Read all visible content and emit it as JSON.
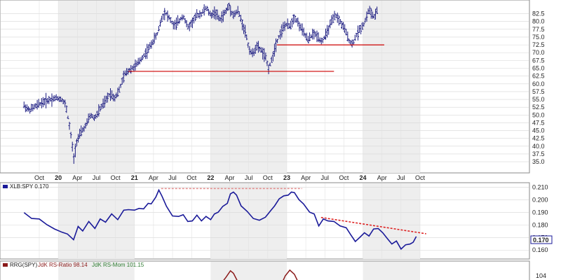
{
  "chart_data": [
    {
      "type": "ohlc",
      "ylim": [
        33,
        86
      ],
      "yticks": [
        "35.0",
        "37.5",
        "40.0",
        "42.5",
        "45.0",
        "47.5",
        "50.0",
        "52.5",
        "55.0",
        "57.5",
        "60.0",
        "62.5",
        "65.0",
        "67.5",
        "70.0",
        "72.5",
        "75.0",
        "77.5",
        "80.0",
        "82.5"
      ],
      "time_ticks": [
        {
          "label": "Oct",
          "bold": false,
          "year": 2019.75
        },
        {
          "label": "20",
          "bold": true,
          "year": 2020.0
        },
        {
          "label": "Apr",
          "bold": false,
          "year": 2020.25
        },
        {
          "label": "Jul",
          "bold": false,
          "year": 2020.5
        },
        {
          "label": "Oct",
          "bold": false,
          "year": 2020.75
        },
        {
          "label": "21",
          "bold": true,
          "year": 2021.0
        },
        {
          "label": "Apr",
          "bold": false,
          "year": 2021.25
        },
        {
          "label": "Jul",
          "bold": false,
          "year": 2021.5
        },
        {
          "label": "Oct",
          "bold": false,
          "year": 2021.75
        },
        {
          "label": "22",
          "bold": true,
          "year": 2022.0
        },
        {
          "label": "Apr",
          "bold": false,
          "year": 2022.25
        },
        {
          "label": "Jul",
          "bold": false,
          "year": 2022.5
        },
        {
          "label": "Oct",
          "bold": false,
          "year": 2022.75
        },
        {
          "label": "23",
          "bold": true,
          "year": 2023.0
        },
        {
          "label": "Apr",
          "bold": false,
          "year": 2023.25
        },
        {
          "label": "Jul",
          "bold": false,
          "year": 2023.5
        },
        {
          "label": "Oct",
          "bold": false,
          "year": 2023.75
        },
        {
          "label": "24",
          "bold": true,
          "year": 2024.0
        },
        {
          "label": "Apr",
          "bold": false,
          "year": 2024.25
        },
        {
          "label": "Jul",
          "bold": false,
          "year": 2024.5
        },
        {
          "label": "Oct",
          "bold": false,
          "year": 2024.75
        }
      ],
      "series": [
        {
          "year": 2019.55,
          "price": 53.0
        },
        {
          "year": 2019.62,
          "price": 51.5
        },
        {
          "year": 2019.68,
          "price": 52.5
        },
        {
          "year": 2019.75,
          "price": 53.5
        },
        {
          "year": 2019.83,
          "price": 54.5
        },
        {
          "year": 2019.9,
          "price": 55.0
        },
        {
          "year": 2019.97,
          "price": 55.5
        },
        {
          "year": 2020.05,
          "price": 55.0
        },
        {
          "year": 2020.1,
          "price": 53.0
        },
        {
          "year": 2020.14,
          "price": 47.5
        },
        {
          "year": 2020.18,
          "price": 41.0
        },
        {
          "year": 2020.2,
          "price": 35.5
        },
        {
          "year": 2020.24,
          "price": 41.5
        },
        {
          "year": 2020.3,
          "price": 44.5
        },
        {
          "year": 2020.36,
          "price": 46.5
        },
        {
          "year": 2020.42,
          "price": 50.0
        },
        {
          "year": 2020.48,
          "price": 49.0
        },
        {
          "year": 2020.55,
          "price": 52.0
        },
        {
          "year": 2020.62,
          "price": 54.5
        },
        {
          "year": 2020.68,
          "price": 57.0
        },
        {
          "year": 2020.74,
          "price": 55.5
        },
        {
          "year": 2020.8,
          "price": 58.0
        },
        {
          "year": 2020.87,
          "price": 63.0
        },
        {
          "year": 2020.93,
          "price": 64.5
        },
        {
          "year": 2021.0,
          "price": 65.5
        },
        {
          "year": 2021.06,
          "price": 67.0
        },
        {
          "year": 2021.12,
          "price": 69.0
        },
        {
          "year": 2021.18,
          "price": 71.0
        },
        {
          "year": 2021.24,
          "price": 73.5
        },
        {
          "year": 2021.3,
          "price": 76.0
        },
        {
          "year": 2021.35,
          "price": 80.5
        },
        {
          "year": 2021.4,
          "price": 83.0
        },
        {
          "year": 2021.46,
          "price": 81.0
        },
        {
          "year": 2021.52,
          "price": 78.5
        },
        {
          "year": 2021.58,
          "price": 80.0
        },
        {
          "year": 2021.64,
          "price": 82.0
        },
        {
          "year": 2021.7,
          "price": 78.0
        },
        {
          "year": 2021.75,
          "price": 79.5
        },
        {
          "year": 2021.82,
          "price": 82.0
        },
        {
          "year": 2021.88,
          "price": 82.5
        },
        {
          "year": 2021.94,
          "price": 84.5
        },
        {
          "year": 2022.0,
          "price": 82.0
        },
        {
          "year": 2022.06,
          "price": 83.0
        },
        {
          "year": 2022.12,
          "price": 80.5
        },
        {
          "year": 2022.18,
          "price": 82.5
        },
        {
          "year": 2022.24,
          "price": 85.0
        },
        {
          "year": 2022.3,
          "price": 82.0
        },
        {
          "year": 2022.36,
          "price": 83.5
        },
        {
          "year": 2022.42,
          "price": 79.0
        },
        {
          "year": 2022.46,
          "price": 76.5
        },
        {
          "year": 2022.5,
          "price": 71.5
        },
        {
          "year": 2022.55,
          "price": 69.5
        },
        {
          "year": 2022.6,
          "price": 72.0
        },
        {
          "year": 2022.66,
          "price": 71.0
        },
        {
          "year": 2022.72,
          "price": 68.5
        },
        {
          "year": 2022.76,
          "price": 65.0
        },
        {
          "year": 2022.8,
          "price": 67.5
        },
        {
          "year": 2022.86,
          "price": 73.0
        },
        {
          "year": 2022.92,
          "price": 76.5
        },
        {
          "year": 2022.98,
          "price": 79.0
        },
        {
          "year": 2023.04,
          "price": 78.5
        },
        {
          "year": 2023.1,
          "price": 81.5
        },
        {
          "year": 2023.16,
          "price": 79.0
        },
        {
          "year": 2023.22,
          "price": 76.5
        },
        {
          "year": 2023.28,
          "price": 74.0
        },
        {
          "year": 2023.34,
          "price": 76.0
        },
        {
          "year": 2023.4,
          "price": 75.5
        },
        {
          "year": 2023.46,
          "price": 73.5
        },
        {
          "year": 2023.52,
          "price": 76.0
        },
        {
          "year": 2023.58,
          "price": 79.5
        },
        {
          "year": 2023.64,
          "price": 82.0
        },
        {
          "year": 2023.7,
          "price": 80.0
        },
        {
          "year": 2023.76,
          "price": 77.5
        },
        {
          "year": 2023.82,
          "price": 74.0
        },
        {
          "year": 2023.86,
          "price": 72.5
        },
        {
          "year": 2023.9,
          "price": 75.0
        },
        {
          "year": 2023.96,
          "price": 77.5
        },
        {
          "year": 2024.02,
          "price": 79.5
        },
        {
          "year": 2024.08,
          "price": 84.0
        },
        {
          "year": 2024.12,
          "price": 82.0
        },
        {
          "year": 2024.16,
          "price": 81.5
        },
        {
          "year": 2024.2,
          "price": 84.5
        }
      ],
      "support_lines": [
        {
          "from": 2020.92,
          "to": 2023.62,
          "price": 64.0,
          "color": "#cc0000"
        },
        {
          "from": 2022.87,
          "to": 2024.28,
          "price": 72.5,
          "color": "#cc0000"
        }
      ]
    },
    {
      "type": "line",
      "legend": "XLB:SPY 0.170",
      "series_name": "XLB:SPY",
      "last_value_label": "0.170",
      "ylim": [
        0.154,
        0.212
      ],
      "yticks": [
        "0.160",
        "0.170",
        "0.180",
        "0.190",
        "0.200",
        "0.210"
      ],
      "line_color": "#1a1a99",
      "points": [
        {
          "year": 2019.55,
          "v": 0.189
        },
        {
          "year": 2019.65,
          "v": 0.186
        },
        {
          "year": 2019.75,
          "v": 0.184
        },
        {
          "year": 2019.85,
          "v": 0.181
        },
        {
          "year": 2019.95,
          "v": 0.176
        },
        {
          "year": 2020.05,
          "v": 0.175
        },
        {
          "year": 2020.12,
          "v": 0.172
        },
        {
          "year": 2020.2,
          "v": 0.169
        },
        {
          "year": 2020.26,
          "v": 0.178
        },
        {
          "year": 2020.32,
          "v": 0.176
        },
        {
          "year": 2020.4,
          "v": 0.182
        },
        {
          "year": 2020.48,
          "v": 0.178
        },
        {
          "year": 2020.55,
          "v": 0.184
        },
        {
          "year": 2020.62,
          "v": 0.183
        },
        {
          "year": 2020.7,
          "v": 0.188
        },
        {
          "year": 2020.78,
          "v": 0.185
        },
        {
          "year": 2020.86,
          "v": 0.191
        },
        {
          "year": 2020.92,
          "v": 0.193
        },
        {
          "year": 2021.0,
          "v": 0.191
        },
        {
          "year": 2021.06,
          "v": 0.194
        },
        {
          "year": 2021.12,
          "v": 0.192
        },
        {
          "year": 2021.18,
          "v": 0.198
        },
        {
          "year": 2021.22,
          "v": 0.196
        },
        {
          "year": 2021.28,
          "v": 0.203
        },
        {
          "year": 2021.32,
          "v": 0.207
        },
        {
          "year": 2021.36,
          "v": 0.204
        },
        {
          "year": 2021.42,
          "v": 0.194
        },
        {
          "year": 2021.5,
          "v": 0.188
        },
        {
          "year": 2021.58,
          "v": 0.186
        },
        {
          "year": 2021.64,
          "v": 0.189
        },
        {
          "year": 2021.7,
          "v": 0.182
        },
        {
          "year": 2021.76,
          "v": 0.184
        },
        {
          "year": 2021.82,
          "v": 0.187
        },
        {
          "year": 2021.88,
          "v": 0.184
        },
        {
          "year": 2021.94,
          "v": 0.186
        },
        {
          "year": 2022.0,
          "v": 0.185
        },
        {
          "year": 2022.05,
          "v": 0.188
        },
        {
          "year": 2022.1,
          "v": 0.191
        },
        {
          "year": 2022.16,
          "v": 0.194
        },
        {
          "year": 2022.22,
          "v": 0.198
        },
        {
          "year": 2022.26,
          "v": 0.204
        },
        {
          "year": 2022.3,
          "v": 0.207
        },
        {
          "year": 2022.34,
          "v": 0.203
        },
        {
          "year": 2022.4,
          "v": 0.196
        },
        {
          "year": 2022.48,
          "v": 0.19
        },
        {
          "year": 2022.56,
          "v": 0.186
        },
        {
          "year": 2022.64,
          "v": 0.183
        },
        {
          "year": 2022.72,
          "v": 0.187
        },
        {
          "year": 2022.78,
          "v": 0.19
        },
        {
          "year": 2022.84,
          "v": 0.196
        },
        {
          "year": 2022.9,
          "v": 0.2
        },
        {
          "year": 2022.96,
          "v": 0.204
        },
        {
          "year": 2023.02,
          "v": 0.203
        },
        {
          "year": 2023.06,
          "v": 0.207
        },
        {
          "year": 2023.1,
          "v": 0.205
        },
        {
          "year": 2023.16,
          "v": 0.201
        },
        {
          "year": 2023.22,
          "v": 0.196
        },
        {
          "year": 2023.3,
          "v": 0.191
        },
        {
          "year": 2023.36,
          "v": 0.188
        },
        {
          "year": 2023.42,
          "v": 0.18
        },
        {
          "year": 2023.48,
          "v": 0.184
        },
        {
          "year": 2023.54,
          "v": 0.184
        },
        {
          "year": 2023.62,
          "v": 0.182
        },
        {
          "year": 2023.7,
          "v": 0.18
        },
        {
          "year": 2023.78,
          "v": 0.177
        },
        {
          "year": 2023.84,
          "v": 0.173
        },
        {
          "year": 2023.9,
          "v": 0.166
        },
        {
          "year": 2023.96,
          "v": 0.171
        },
        {
          "year": 2024.02,
          "v": 0.173
        },
        {
          "year": 2024.08,
          "v": 0.172
        },
        {
          "year": 2024.14,
          "v": 0.176
        },
        {
          "year": 2024.2,
          "v": 0.178
        },
        {
          "year": 2024.26,
          "v": 0.173
        },
        {
          "year": 2024.32,
          "v": 0.17
        },
        {
          "year": 2024.38,
          "v": 0.164
        },
        {
          "year": 2024.44,
          "v": 0.168
        },
        {
          "year": 2024.5,
          "v": 0.16
        },
        {
          "year": 2024.56,
          "v": 0.165
        },
        {
          "year": 2024.62,
          "v": 0.164
        },
        {
          "year": 2024.66,
          "v": 0.167
        },
        {
          "year": 2024.7,
          "v": 0.17
        }
      ],
      "trendlines": [
        {
          "from_year": 2021.35,
          "from_v": 0.209,
          "to_year": 2023.2,
          "to_v": 0.209,
          "color": "#e08a8a",
          "dashed": true
        },
        {
          "from_year": 2023.45,
          "from_v": 0.186,
          "to_year": 2024.83,
          "to_v": 0.173,
          "color": "#dd2222",
          "dashed": true
        }
      ]
    },
    {
      "type": "line",
      "legend_name": "RRG(SPY)",
      "legend_ratio": "JdK RS-Ratio 98.14",
      "legend_mom": "JdK RS-Mom 101.15",
      "ylim": [
        100,
        108
      ],
      "yticks": [
        "104"
      ],
      "ratio_color": "#8b1a1a",
      "mom_color": "#2f7d32",
      "ratio_points": [
        {
          "year": 2020.82,
          "v": 100.5
        },
        {
          "year": 2020.9,
          "v": 101.5
        },
        {
          "year": 2020.96,
          "v": 101.0
        },
        {
          "year": 2021.02,
          "v": 100.5
        },
        {
          "year": 2022.12,
          "v": 101.0
        },
        {
          "year": 2022.2,
          "v": 103.5
        },
        {
          "year": 2022.26,
          "v": 105.6
        },
        {
          "year": 2022.3,
          "v": 104.8
        },
        {
          "year": 2022.36,
          "v": 102.0
        },
        {
          "year": 2022.42,
          "v": 100.5
        },
        {
          "year": 2022.92,
          "v": 100.8
        },
        {
          "year": 2022.98,
          "v": 104.0
        },
        {
          "year": 2023.04,
          "v": 105.8
        },
        {
          "year": 2023.1,
          "v": 104.5
        },
        {
          "year": 2023.16,
          "v": 101.5
        },
        {
          "year": 2023.22,
          "v": 100.4
        }
      ],
      "mom_points": []
    }
  ]
}
